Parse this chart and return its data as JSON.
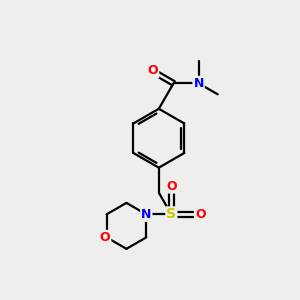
{
  "bg_color": "#eeeeee",
  "bond_color": "#000000",
  "atom_colors": {
    "O": "#ff0000",
    "N": "#0000ff",
    "S": "#cccc00",
    "C": "#000000"
  },
  "line_width": 1.6,
  "font_size": 8.5,
  "figsize": [
    3.0,
    3.0
  ],
  "dpi": 100,
  "xlim": [
    0,
    10
  ],
  "ylim": [
    0,
    10
  ]
}
